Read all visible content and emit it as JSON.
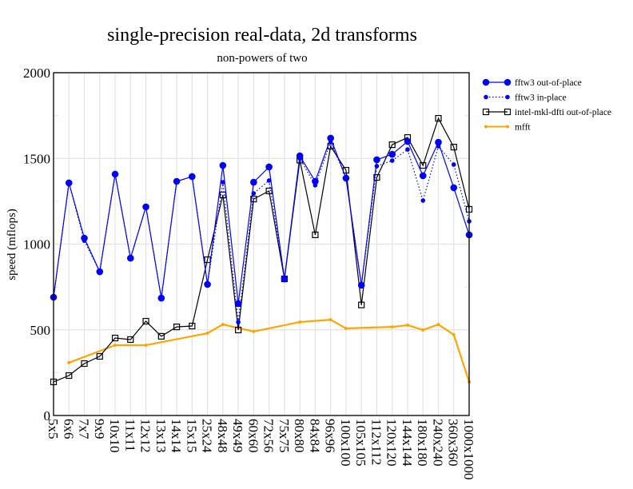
{
  "chart_data": {
    "type": "line",
    "title": "single-precision real-data, 2d transforms",
    "subtitle": "non-powers of two",
    "xlabel": "",
    "ylabel": "speed (mflops)",
    "ylim": [
      0,
      2000
    ],
    "yticks": [
      0,
      500,
      1000,
      1500,
      2000
    ],
    "grid": true,
    "legend_position": "right",
    "categories": [
      "5x5",
      "6x6",
      "7x7",
      "9x9",
      "10x10",
      "11x11",
      "12x12",
      "13x13",
      "14x14",
      "15x15",
      "25x24",
      "48x48",
      "49x49",
      "60x60",
      "72x56",
      "75x75",
      "80x80",
      "84x84",
      "96x96",
      "100x100",
      "105x105",
      "112x112",
      "120x120",
      "144x144",
      "180x180",
      "240x240",
      "360x360",
      "1000x1000"
    ],
    "series": [
      {
        "name": "fftw3 out-of-place",
        "color": "#0000ff",
        "style": "solid",
        "marker": "big-dot",
        "values": [
          690,
          1357,
          1035,
          839,
          1408,
          918,
          1217,
          685,
          1366,
          1394,
          765,
          1459,
          653,
          1361,
          1450,
          797,
          1515,
          1366,
          1618,
          1385,
          760,
          1492,
          1524,
          1599,
          1399,
          1594,
          1329,
          1054
        ]
      },
      {
        "name": "fftw3 in-place",
        "color": "#0000ff",
        "style": "dotted",
        "marker": "small-dot",
        "values": [
          690,
          1357,
          1020,
          839,
          1408,
          918,
          1217,
          685,
          1366,
          1394,
          765,
          1361,
          545,
          1296,
          1371,
          797,
          1500,
          1343,
          1594,
          1390,
          760,
          1455,
          1487,
          1552,
          1254,
          1571,
          1464,
          1133
        ]
      },
      {
        "name": "intel-mkl-dfti out-of-place",
        "color": "#000000",
        "style": "solid",
        "marker": "open-square",
        "values": [
          196,
          233,
          303,
          345,
          452,
          443,
          550,
          462,
          517,
          522,
          909,
          1287,
          499,
          1263,
          1310,
          797,
          1490,
          1054,
          1571,
          1431,
          645,
          1389,
          1580,
          1622,
          1459,
          1734,
          1566,
          1203
        ]
      },
      {
        "name": "mfft",
        "color": "#ffa500",
        "style": "solid",
        "marker": "tiny-dot",
        "values": [
          null,
          308,
          null,
          null,
          410,
          null,
          410,
          null,
          null,
          null,
          480,
          531,
          null,
          490,
          null,
          null,
          545,
          null,
          559,
          508,
          null,
          null,
          517,
          527,
          499,
          531,
          471,
          196
        ]
      }
    ]
  }
}
